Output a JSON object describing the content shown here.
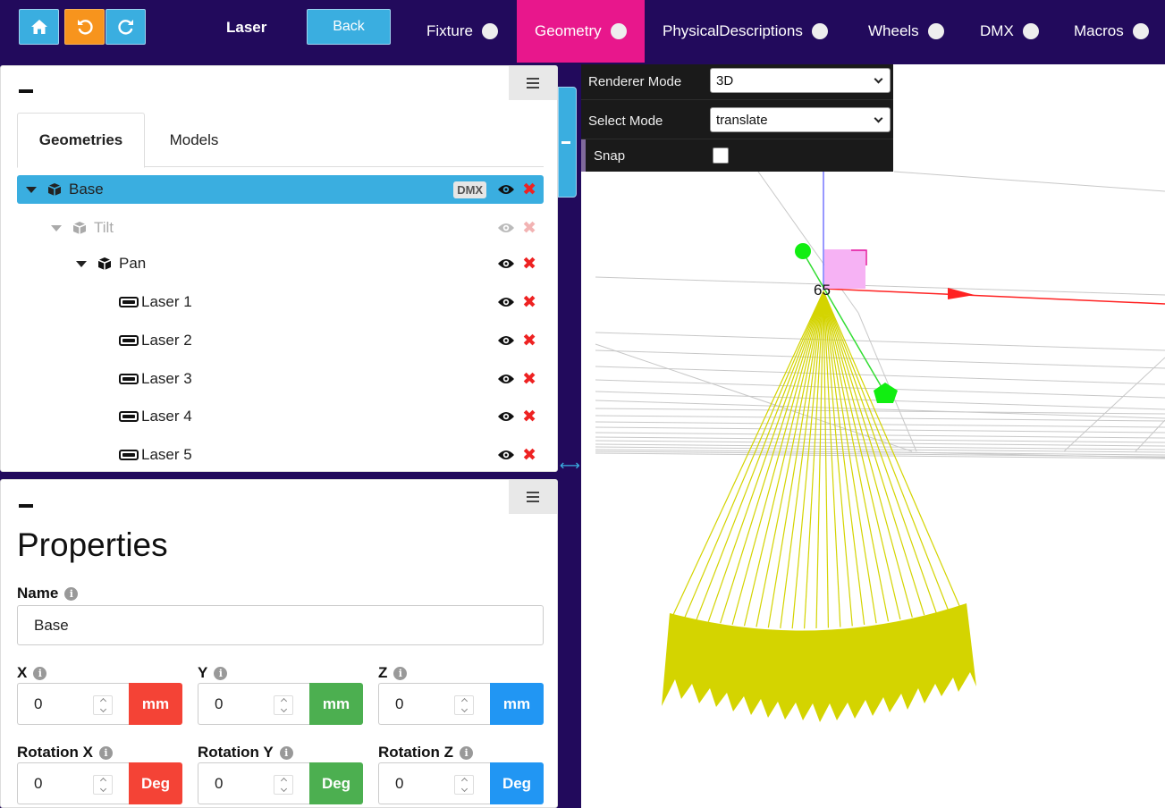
{
  "topbar": {
    "title": "Laser",
    "back_label": "Back",
    "nav": [
      {
        "label": "Fixture",
        "active": false
      },
      {
        "label": "Geometry",
        "active": true
      },
      {
        "label": "PhysicalDescriptions",
        "active": false
      },
      {
        "label": "Wheels",
        "active": false
      },
      {
        "label": "DMX",
        "active": false
      },
      {
        "label": "Macros",
        "active": false
      }
    ],
    "icons": [
      "home-icon",
      "undo-icon",
      "redo-icon"
    ]
  },
  "tree_panel": {
    "tabs": [
      {
        "label": "Geometries",
        "active": true
      },
      {
        "label": "Models",
        "active": false
      }
    ],
    "rows": [
      {
        "label": "Base",
        "badge": "DMX",
        "selected": true,
        "disabled": false
      },
      {
        "label": "Tilt",
        "selected": false,
        "disabled": true
      },
      {
        "label": "Pan",
        "selected": false,
        "disabled": false
      },
      {
        "label": "Laser 1"
      },
      {
        "label": "Laser 2"
      },
      {
        "label": "Laser 3"
      },
      {
        "label": "Laser 4"
      },
      {
        "label": "Laser 5"
      }
    ]
  },
  "properties": {
    "title": "Properties",
    "name_label": "Name",
    "name_value": "Base",
    "position": [
      {
        "label": "X",
        "value": "0",
        "unit": "mm",
        "color": "#f44336"
      },
      {
        "label": "Y",
        "value": "0",
        "unit": "mm",
        "color": "#4caf50"
      },
      {
        "label": "Z",
        "value": "0",
        "unit": "mm",
        "color": "#2196f3"
      }
    ],
    "rotation": [
      {
        "label": "Rotation X",
        "value": "0",
        "unit": "Deg",
        "color": "#f44336"
      },
      {
        "label": "Rotation Y",
        "value": "0",
        "unit": "Deg",
        "color": "#4caf50"
      },
      {
        "label": "Rotation Z",
        "value": "0",
        "unit": "Deg",
        "color": "#2196f3"
      }
    ]
  },
  "viewport_controls": {
    "renderer_mode_label": "Renderer Mode",
    "renderer_mode_value": "3D",
    "select_mode_label": "Select Mode",
    "select_mode_value": "translate",
    "snap_label": "Snap",
    "snap_checked": false
  },
  "scene": {
    "gizmo_label": "65"
  },
  "colors": {
    "topbar_bg": "#220a5c",
    "accent_blue": "#3aaee0",
    "accent_pink": "#e8178c",
    "accent_orange": "#f7941d",
    "laser_yellow": "#d4d400"
  }
}
